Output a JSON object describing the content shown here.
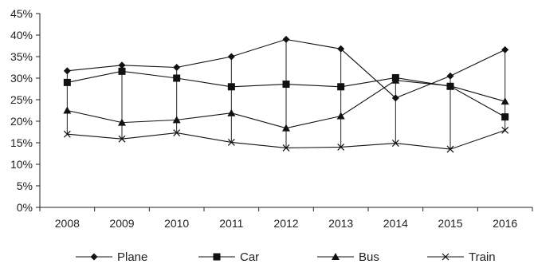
{
  "chart_data": {
    "type": "line",
    "title": "",
    "xlabel": "",
    "ylabel": "",
    "categories": [
      "2008",
      "2009",
      "2010",
      "2011",
      "2012",
      "2013",
      "2014",
      "2015",
      "2016"
    ],
    "y_tick_labels": [
      "0%",
      "5%",
      "10%",
      "15%",
      "20%",
      "25%",
      "30%",
      "35%",
      "40%",
      "45%"
    ],
    "ylim": [
      0,
      45
    ],
    "grid": false,
    "legend_position": "bottom",
    "high_low_lines": true,
    "series": [
      {
        "name": "Plane",
        "marker": "diamond",
        "values": [
          31.7,
          33.0,
          32.5,
          35.0,
          39.0,
          36.8,
          25.4,
          30.5,
          36.6
        ]
      },
      {
        "name": "Car",
        "marker": "square",
        "values": [
          29.0,
          31.6,
          30.0,
          28.0,
          28.6,
          28.0,
          30.1,
          28.1,
          21.0
        ]
      },
      {
        "name": "Bus",
        "marker": "triangle",
        "values": [
          22.5,
          19.7,
          20.3,
          21.9,
          18.4,
          21.2,
          29.5,
          28.2,
          24.6
        ]
      },
      {
        "name": "Train",
        "marker": "x",
        "values": [
          17.0,
          15.9,
          17.3,
          15.1,
          13.8,
          14.0,
          14.9,
          13.5,
          17.9
        ]
      }
    ]
  }
}
